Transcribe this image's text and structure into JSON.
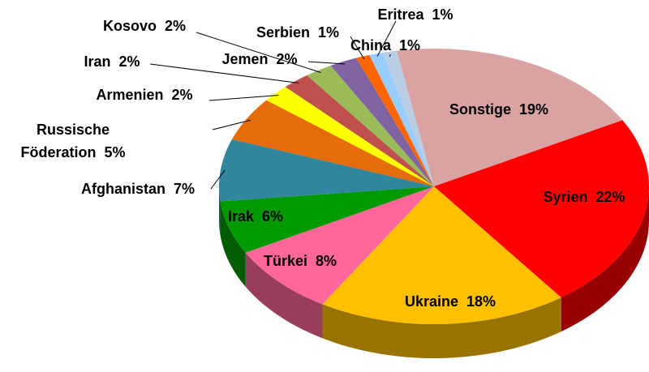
{
  "chart_data": {
    "type": "pie3d",
    "categories": [
      "Sonstige",
      "Syrien",
      "Ukraine",
      "Türkei",
      "Irak",
      "Afghanistan",
      "Russische Föderation",
      "Armenien",
      "Iran",
      "Kosovo",
      "Jemen",
      "Serbien",
      "Eritrea",
      "China"
    ],
    "values": [
      19,
      22,
      18,
      8,
      6,
      7,
      5,
      2,
      2,
      2,
      2,
      1,
      1,
      1
    ],
    "value_labels": [
      "19%",
      "22%",
      "18%",
      "8%",
      "6%",
      "7%",
      "5%",
      "2%",
      "2%",
      "2%",
      "2%",
      "1%",
      "1%",
      "1%"
    ],
    "colors": [
      "#d9a3a3",
      "#ff0000",
      "#ffc000",
      "#ff6699",
      "#009900",
      "#31859c",
      "#e46c0a",
      "#ffff00",
      "#c0504d",
      "#9bbb59",
      "#8064a2",
      "#ff6600",
      "#99ccff",
      "#b9cde5"
    ]
  }
}
